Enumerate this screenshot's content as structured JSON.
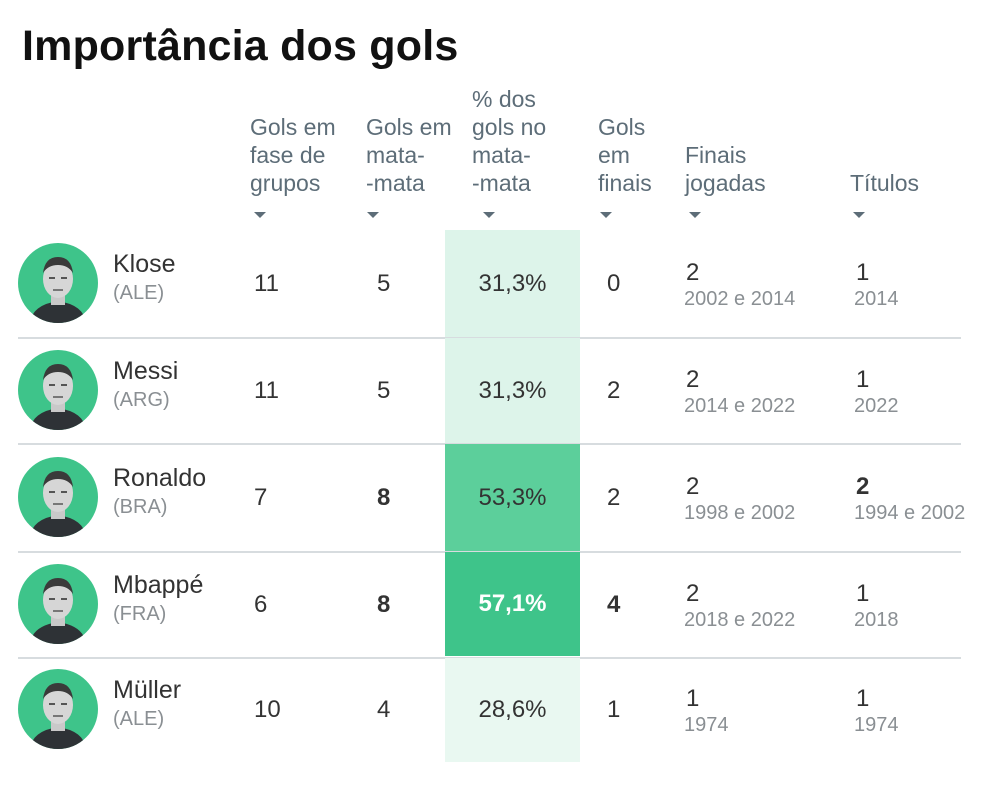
{
  "title": "Importância dos gols",
  "chart_data": {
    "type": "table",
    "title": "Importância dos gols",
    "columns": [
      {
        "key": "group",
        "label": "Gols em\nfase de\ngrupos"
      },
      {
        "key": "knockout",
        "label": "Gols em\nmata-\n-mata"
      },
      {
        "key": "pct",
        "label": "% dos\ngols no\nmata-\n-mata"
      },
      {
        "key": "finals",
        "label": "Gols\nem\nfinais"
      },
      {
        "key": "finals_played",
        "label": "Finais\njogadas"
      },
      {
        "key": "titles",
        "label": "Títulos"
      }
    ],
    "rows": [
      {
        "name": "Klose",
        "country": "(ALE)",
        "group": "11",
        "knockout": "5",
        "pct": "31,3%",
        "pct_value": 31.3,
        "finals": "0",
        "finals_played": "2",
        "finals_years": "2002 e 2014",
        "titles": "1",
        "titles_years": "2014",
        "bold": []
      },
      {
        "name": "Messi",
        "country": "(ARG)",
        "group": "11",
        "knockout": "5",
        "pct": "31,3%",
        "pct_value": 31.3,
        "finals": "2",
        "finals_played": "2",
        "finals_years": "2014 e 2022",
        "titles": "1",
        "titles_years": "2022",
        "bold": []
      },
      {
        "name": "Ronaldo",
        "country": "(BRA)",
        "group": "7",
        "knockout": "8",
        "pct": "53,3%",
        "pct_value": 53.3,
        "finals": "2",
        "finals_played": "2",
        "finals_years": "1998 e 2002",
        "titles": "2",
        "titles_years": "1994 e 2002",
        "bold": [
          "knockout",
          "titles"
        ]
      },
      {
        "name": "Mbappé",
        "country": "(FRA)",
        "group": "6",
        "knockout": "8",
        "pct": "57,1%",
        "pct_value": 57.1,
        "finals": "4",
        "finals_played": "2",
        "finals_years": "2018 e 2022",
        "titles": "1",
        "titles_years": "2018",
        "bold": [
          "knockout",
          "pct",
          "finals"
        ]
      },
      {
        "name": "Müller",
        "country": "(ALE)",
        "group": "10",
        "knockout": "4",
        "pct": "28,6%",
        "pct_value": 28.6,
        "finals": "1",
        "finals_played": "1",
        "finals_years": "1974",
        "titles": "1",
        "titles_years": "1974",
        "bold": []
      }
    ],
    "pct_colors": [
      "#ddf4ea",
      "#ddf4ea",
      "#5ccf9b",
      "#3ec48a",
      "#e9f8f1"
    ]
  }
}
